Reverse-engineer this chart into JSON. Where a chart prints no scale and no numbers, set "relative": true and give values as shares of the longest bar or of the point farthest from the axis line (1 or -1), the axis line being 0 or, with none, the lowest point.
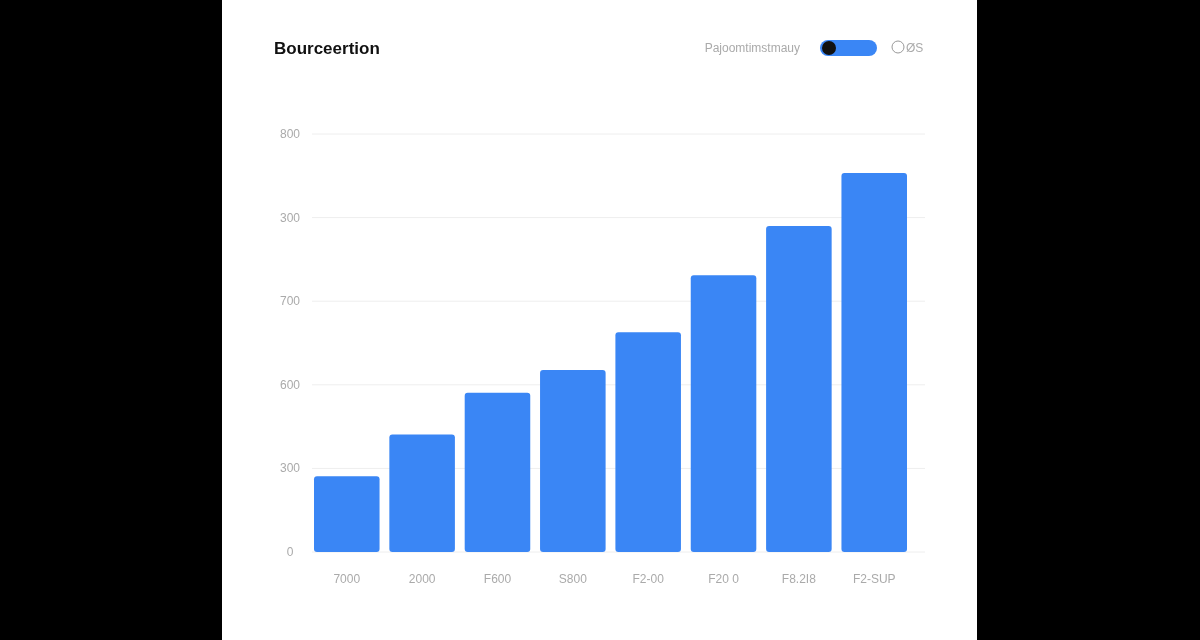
{
  "chart_data": {
    "type": "bar",
    "title": "Bourceertion",
    "annotations": [
      "Pajoomtimstmauy",
      "ØS",
      "0",
      "300",
      "600",
      "700",
      "300",
      "800"
    ],
    "categories": [
      "7000",
      "2000",
      "F600",
      "S800",
      "F2-00",
      "F20 0",
      "F8.2I8",
      "F2-SUP"
    ],
    "values": [
      0.2,
      0.31,
      0.42,
      0.48,
      0.58,
      0.73,
      0.86,
      1
    ],
    "relative": true,
    "color": "#3a86f5",
    "grid": "y"
  }
}
